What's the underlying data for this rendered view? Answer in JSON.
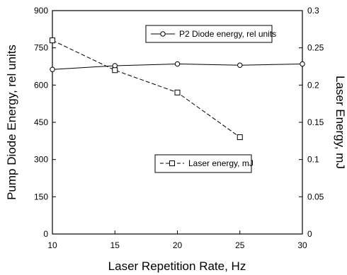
{
  "chart_data": {
    "type": "line",
    "title": "",
    "xlabel": "Laser Repetition Rate, Hz",
    "ylabel_left": "Pump Diode Energy, rel units",
    "ylabel_right": "Laser Energy, mJ",
    "x_ticks": [
      10,
      15,
      20,
      25,
      30
    ],
    "xlim": [
      10,
      30
    ],
    "ylim_left": [
      0,
      900
    ],
    "ylim_right": [
      0,
      0.3
    ],
    "y_left_ticks": [
      0,
      150,
      300,
      450,
      600,
      750,
      900
    ],
    "y_right_ticks": [
      0,
      0.05,
      0.1,
      0.15,
      0.2,
      0.25,
      0.3
    ],
    "y_right_tick_labels": [
      "0",
      "0.05",
      "0.1",
      "0.15",
      "0.2",
      "0.25",
      "0.3"
    ],
    "grid": false,
    "series": [
      {
        "name": "P2 Diode energy, rel units",
        "axis": "left",
        "line_style": "solid",
        "marker": "circle",
        "x": [
          10,
          15,
          20,
          25,
          30
        ],
        "y": [
          663,
          678,
          685,
          680,
          685
        ]
      },
      {
        "name": "Laser energy, mJ",
        "axis": "right",
        "line_style": "dashed",
        "marker": "square",
        "x": [
          10,
          15,
          20,
          25
        ],
        "y": [
          0.26,
          0.22,
          0.19,
          0.13
        ]
      }
    ]
  }
}
